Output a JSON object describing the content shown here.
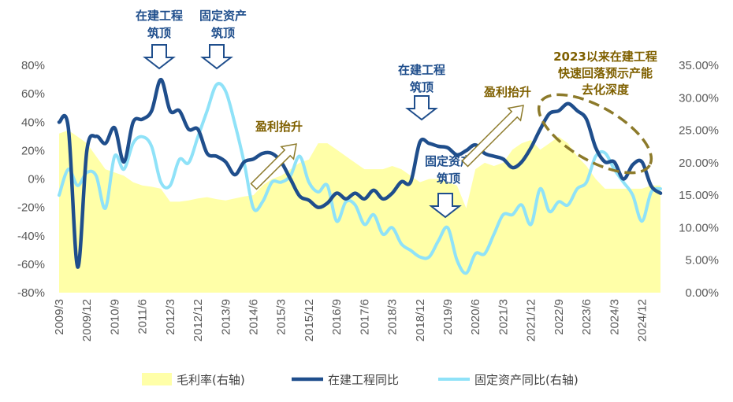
{
  "chart_data": {
    "type": "line",
    "x_ticks": [
      "2009/3",
      "2009/12",
      "2010/9",
      "2011/6",
      "2012/3",
      "2012/12",
      "2013/9",
      "2014/6",
      "2015/3",
      "2015/12",
      "2016/9",
      "2017/6",
      "2018/3",
      "2018/12",
      "2019/9",
      "2020/6",
      "2021/3",
      "2021/12",
      "2022/9",
      "2023/6",
      "2024/3",
      "2024/12"
    ],
    "y_left_ticks": [
      "80%",
      "60%",
      "40%",
      "20%",
      "0%",
      "-20%",
      "-40%",
      "-60%",
      "-80%"
    ],
    "y_right_ticks": [
      "35.00%",
      "30.00%",
      "25.00%",
      "20.00%",
      "15.00%",
      "10.00%",
      "5.00%",
      "0.00%"
    ],
    "ylim_left": [
      -80,
      80
    ],
    "ylim_right": [
      0,
      35
    ],
    "grid": false,
    "legend_position": "bottom",
    "series": [
      {
        "name": "毛利率(右轴)",
        "axis": "right",
        "style": "area",
        "color": "#ffffa8",
        "points": [
          [
            "2009/3",
            24.5
          ],
          [
            "2009/6",
            25
          ],
          [
            "2009/9",
            24
          ],
          [
            "2009/12",
            23
          ],
          [
            "2010/3",
            21
          ],
          [
            "2010/6",
            19
          ],
          [
            "2010/9",
            18.5
          ],
          [
            "2010/12",
            18
          ],
          [
            "2011/3",
            17
          ],
          [
            "2011/6",
            16.5
          ],
          [
            "2011/9",
            16.3
          ],
          [
            "2011/12",
            16
          ],
          [
            "2012/3",
            14
          ],
          [
            "2012/6",
            14
          ],
          [
            "2012/9",
            14.2
          ],
          [
            "2012/12",
            14.5
          ],
          [
            "2013/3",
            14.7
          ],
          [
            "2013/6",
            14.4
          ],
          [
            "2013/9",
            14.2
          ],
          [
            "2013/12",
            14.5
          ],
          [
            "2014/3",
            14.8
          ],
          [
            "2014/6",
            15
          ],
          [
            "2014/9",
            16.5
          ],
          [
            "2014/12",
            17.5
          ],
          [
            "2015/3",
            18
          ],
          [
            "2015/6",
            19
          ],
          [
            "2015/9",
            20
          ],
          [
            "2015/12",
            20.5
          ],
          [
            "2016/3",
            23
          ],
          [
            "2016/6",
            23
          ],
          [
            "2016/9",
            22
          ],
          [
            "2016/12",
            21
          ],
          [
            "2017/3",
            20
          ],
          [
            "2017/6",
            19
          ],
          [
            "2017/9",
            19
          ],
          [
            "2017/12",
            19
          ],
          [
            "2018/3",
            19.5
          ],
          [
            "2018/6",
            19
          ],
          [
            "2018/9",
            18
          ],
          [
            "2018/12",
            17
          ],
          [
            "2019/3",
            17.5
          ],
          [
            "2019/6",
            17.5
          ],
          [
            "2019/9",
            17
          ],
          [
            "2019/12",
            16.5
          ],
          [
            "2020/3",
            13
          ],
          [
            "2020/6",
            19
          ],
          [
            "2020/9",
            20
          ],
          [
            "2020/12",
            19.5
          ],
          [
            "2021/3",
            20
          ],
          [
            "2021/6",
            22
          ],
          [
            "2021/9",
            23
          ],
          [
            "2021/12",
            23.5
          ],
          [
            "2022/3",
            22
          ],
          [
            "2022/6",
            23
          ],
          [
            "2022/9",
            24
          ],
          [
            "2022/12",
            23
          ],
          [
            "2023/3",
            21
          ],
          [
            "2023/6",
            19.5
          ],
          [
            "2023/9",
            17.5
          ],
          [
            "2023/12",
            16
          ],
          [
            "2024/3",
            16
          ],
          [
            "2024/6",
            16
          ],
          [
            "2024/9",
            16
          ],
          [
            "2024/12",
            16
          ],
          [
            "2025/3",
            16.5
          ],
          [
            "2025/6",
            16.5
          ]
        ]
      },
      {
        "name": "在建工程同比",
        "axis": "left",
        "style": "line",
        "color": "#1f4e8c",
        "points": [
          [
            "2009/3",
            40
          ],
          [
            "2009/6",
            36
          ],
          [
            "2009/9",
            -62
          ],
          [
            "2009/12",
            20
          ],
          [
            "2010/3",
            30
          ],
          [
            "2010/6",
            25
          ],
          [
            "2010/9",
            36
          ],
          [
            "2010/12",
            12
          ],
          [
            "2011/3",
            40
          ],
          [
            "2011/6",
            42
          ],
          [
            "2011/9",
            48
          ],
          [
            "2011/12",
            70
          ],
          [
            "2012/3",
            48
          ],
          [
            "2012/6",
            48
          ],
          [
            "2012/9",
            35
          ],
          [
            "2012/12",
            35
          ],
          [
            "2013/3",
            18
          ],
          [
            "2013/6",
            16
          ],
          [
            "2013/9",
            12
          ],
          [
            "2013/12",
            3
          ],
          [
            "2014/3",
            12
          ],
          [
            "2014/6",
            14
          ],
          [
            "2014/9",
            18
          ],
          [
            "2014/12",
            18
          ],
          [
            "2015/3",
            12
          ],
          [
            "2015/6",
            0
          ],
          [
            "2015/9",
            -12
          ],
          [
            "2015/12",
            -15
          ],
          [
            "2016/3",
            -20
          ],
          [
            "2016/6",
            -17
          ],
          [
            "2016/9",
            -10
          ],
          [
            "2016/12",
            -14
          ],
          [
            "2017/3",
            -10
          ],
          [
            "2017/6",
            -14
          ],
          [
            "2017/9",
            -8
          ],
          [
            "2017/12",
            -14
          ],
          [
            "2018/3",
            -10
          ],
          [
            "2018/6",
            -2
          ],
          [
            "2018/9",
            -2
          ],
          [
            "2018/12",
            26
          ],
          [
            "2019/3",
            25
          ],
          [
            "2019/6",
            23
          ],
          [
            "2019/9",
            22
          ],
          [
            "2019/12",
            17
          ],
          [
            "2020/3",
            20
          ],
          [
            "2020/6",
            24
          ],
          [
            "2020/9",
            18
          ],
          [
            "2020/12",
            16
          ],
          [
            "2021/3",
            14
          ],
          [
            "2021/6",
            8
          ],
          [
            "2021/9",
            12
          ],
          [
            "2021/12",
            22
          ],
          [
            "2022/3",
            35
          ],
          [
            "2022/6",
            46
          ],
          [
            "2022/9",
            48
          ],
          [
            "2022/12",
            53
          ],
          [
            "2023/3",
            48
          ],
          [
            "2023/6",
            42
          ],
          [
            "2023/9",
            22
          ],
          [
            "2023/12",
            12
          ],
          [
            "2024/3",
            12
          ],
          [
            "2024/6",
            0
          ],
          [
            "2024/9",
            10
          ],
          [
            "2024/12",
            12
          ],
          [
            "2025/3",
            -5
          ],
          [
            "2025/6",
            -10
          ]
        ]
      },
      {
        "name": "固定资产同比(右轴)",
        "axis": "right",
        "style": "line",
        "color": "#8fe2f8",
        "points": [
          [
            "2009/3",
            15
          ],
          [
            "2009/6",
            19
          ],
          [
            "2009/9",
            16.5
          ],
          [
            "2009/12",
            18.5
          ],
          [
            "2010/3",
            18
          ],
          [
            "2010/6",
            13
          ],
          [
            "2010/9",
            21
          ],
          [
            "2010/12",
            19
          ],
          [
            "2011/3",
            23
          ],
          [
            "2011/6",
            24
          ],
          [
            "2011/9",
            22.5
          ],
          [
            "2011/12",
            17
          ],
          [
            "2012/3",
            16.5
          ],
          [
            "2012/6",
            20.5
          ],
          [
            "2012/9",
            20
          ],
          [
            "2012/12",
            24
          ],
          [
            "2013/3",
            28
          ],
          [
            "2013/6",
            32
          ],
          [
            "2013/9",
            31
          ],
          [
            "2013/12",
            26
          ],
          [
            "2014/3",
            20
          ],
          [
            "2014/6",
            13
          ],
          [
            "2014/9",
            14
          ],
          [
            "2014/12",
            17
          ],
          [
            "2015/3",
            17
          ],
          [
            "2015/6",
            18
          ],
          [
            "2015/9",
            21
          ],
          [
            "2015/12",
            17
          ],
          [
            "2016/3",
            15.5
          ],
          [
            "2016/6",
            16.5
          ],
          [
            "2016/9",
            11
          ],
          [
            "2016/12",
            14
          ],
          [
            "2017/3",
            13.5
          ],
          [
            "2017/6",
            10.5
          ],
          [
            "2017/9",
            12
          ],
          [
            "2017/12",
            9
          ],
          [
            "2018/3",
            10
          ],
          [
            "2018/6",
            7.5
          ],
          [
            "2018/9",
            6.5
          ],
          [
            "2018/12",
            5.5
          ],
          [
            "2019/3",
            5.5
          ],
          [
            "2019/6",
            8
          ],
          [
            "2019/9",
            10
          ],
          [
            "2019/12",
            5
          ],
          [
            "2020/3",
            3
          ],
          [
            "2020/6",
            6
          ],
          [
            "2020/9",
            6
          ],
          [
            "2020/12",
            9
          ],
          [
            "2021/3",
            12
          ],
          [
            "2021/6",
            12
          ],
          [
            "2021/9",
            13.5
          ],
          [
            "2021/12",
            10.5
          ],
          [
            "2022/3",
            16
          ],
          [
            "2022/6",
            12.5
          ],
          [
            "2022/9",
            14
          ],
          [
            "2022/12",
            13.5
          ],
          [
            "2023/3",
            16
          ],
          [
            "2023/6",
            17
          ],
          [
            "2023/9",
            21
          ],
          [
            "2023/12",
            21.5
          ],
          [
            "2024/3",
            19
          ],
          [
            "2024/6",
            17
          ],
          [
            "2024/9",
            15
          ],
          [
            "2024/12",
            11
          ],
          [
            "2025/3",
            15.5
          ],
          [
            "2025/6",
            16
          ]
        ]
      }
    ],
    "annotations": [
      {
        "id": "cip1",
        "lines": [
          "在建工程",
          "筑顶"
        ],
        "color": "#1f4e8c"
      },
      {
        "id": "fa1",
        "lines": [
          "固定资产",
          "筑顶"
        ],
        "color": "#1f4e8c"
      },
      {
        "id": "profit1",
        "lines": [
          "盈利抬升"
        ],
        "color": "#7f6000"
      },
      {
        "id": "cip2",
        "lines": [
          "在建工程",
          "筑顶"
        ],
        "color": "#1f4e8c"
      },
      {
        "id": "fa2",
        "lines": [
          "固定资产",
          "筑顶"
        ],
        "color": "#1f4e8c"
      },
      {
        "id": "profit2",
        "lines": [
          "盈利抬升"
        ],
        "color": "#7f6000"
      },
      {
        "id": "destock",
        "lines": [
          "2023以来在建工程",
          "快速回落预示产能",
          "去化深度"
        ],
        "color": "#7f6000"
      }
    ]
  }
}
